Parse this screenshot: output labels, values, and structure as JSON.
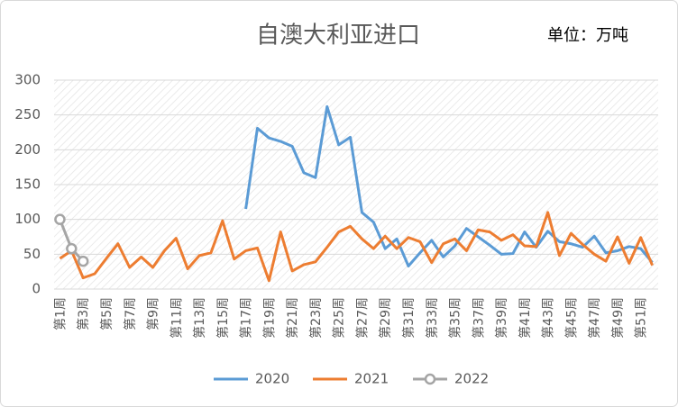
{
  "chart_data": {
    "type": "line",
    "title": "自澳大利亚进口",
    "annotation": "单位：万吨",
    "categories": [
      "第1周",
      null,
      "第3周",
      null,
      "第5周",
      null,
      "第7周",
      null,
      "第9周",
      null,
      "第11周",
      null,
      "第13周",
      null,
      "第15周",
      null,
      "第17周",
      null,
      "第19周",
      null,
      "第21周",
      null,
      "第23周",
      null,
      "第25周",
      null,
      "第27周",
      null,
      "第29周",
      null,
      "第31周",
      null,
      "第33周",
      null,
      "第35周",
      null,
      "第37周",
      null,
      "第39周",
      null,
      "第41周",
      null,
      "第43周",
      null,
      "第45周",
      null,
      "第47周",
      null,
      "第49周",
      null,
      "第51周",
      null
    ],
    "series": [
      {
        "name": "2020",
        "color": "#5b9bd5",
        "marker": false,
        "values": [
          null,
          null,
          null,
          null,
          null,
          null,
          null,
          null,
          null,
          null,
          null,
          null,
          null,
          null,
          null,
          null,
          115,
          231,
          217,
          212,
          205,
          167,
          160,
          262,
          207,
          218,
          110,
          96,
          58,
          72,
          33,
          52,
          70,
          46,
          62,
          87,
          75,
          63,
          50,
          51,
          82,
          60,
          83,
          68,
          65,
          60,
          76,
          52,
          55,
          61,
          58,
          38
        ]
      },
      {
        "name": "2021",
        "color": "#ed7d31",
        "marker": false,
        "values": [
          44,
          55,
          16,
          22,
          44,
          65,
          31,
          46,
          31,
          55,
          73,
          29,
          48,
          52,
          98,
          43,
          55,
          59,
          12,
          82,
          26,
          35,
          39,
          60,
          82,
          90,
          72,
          58,
          76,
          58,
          74,
          68,
          38,
          65,
          72,
          55,
          85,
          82,
          70,
          78,
          62,
          61,
          110,
          48,
          80,
          64,
          50,
          40,
          75,
          37,
          74,
          34
        ]
      },
      {
        "name": "2022",
        "color": "#a5a5a5",
        "marker": true,
        "values": [
          100,
          58,
          40,
          null,
          null,
          null,
          null,
          null,
          null,
          null,
          null,
          null,
          null,
          null,
          null,
          null,
          null,
          null,
          null,
          null,
          null,
          null,
          null,
          null,
          null,
          null,
          null,
          null,
          null,
          null,
          null,
          null,
          null,
          null,
          null,
          null,
          null,
          null,
          null,
          null,
          null,
          null,
          null,
          null,
          null,
          null,
          null,
          null,
          null,
          null,
          null,
          null
        ]
      }
    ],
    "ylim": [
      0,
      300
    ],
    "yticks": [
      0,
      50,
      100,
      150,
      200,
      250,
      300
    ],
    "grid": true,
    "legend": "bottom"
  }
}
